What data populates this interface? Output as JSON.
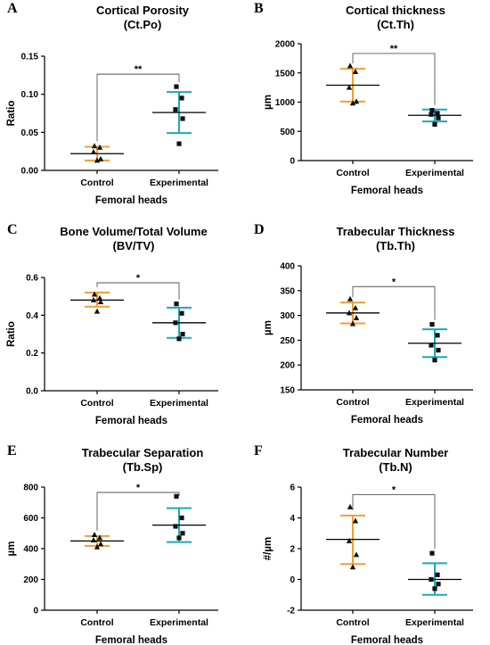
{
  "colors": {
    "control": "#f0a030",
    "experimental": "#1aaab8",
    "points": "#111111"
  },
  "chart_data": [
    {
      "panel": "A",
      "type": "scatter",
      "title": "Cortical Porosity",
      "subtitle": "(Ct.Po)",
      "xlabel": "Femoral heads",
      "ylabel": "Ratio",
      "ylim": [
        0,
        0.15
      ],
      "yticks": [
        "0.00",
        "0.05",
        "0.10",
        "0.15"
      ],
      "categories": [
        "Control",
        "Experimental"
      ],
      "series": [
        {
          "mean": 0.022,
          "sd_low": 0.013,
          "sd_high": 0.031,
          "points": [
            0.032,
            0.03,
            0.024,
            0.015,
            0.013
          ],
          "marker": "triangle"
        },
        {
          "mean": 0.076,
          "sd_low": 0.049,
          "sd_high": 0.103,
          "points": [
            0.11,
            0.095,
            0.08,
            0.068,
            0.035
          ],
          "marker": "square"
        }
      ],
      "significance": "**"
    },
    {
      "panel": "B",
      "type": "scatter",
      "title": "Cortical thickness",
      "subtitle": "(Ct.Th)",
      "xlabel": "Femoral heads",
      "ylabel": "µm",
      "ylim": [
        0,
        2000
      ],
      "yticks": [
        "0",
        "500",
        "1000",
        "1500",
        "2000"
      ],
      "categories": [
        "Control",
        "Experimental"
      ],
      "series": [
        {
          "mean": 1290,
          "sd_low": 1010,
          "sd_high": 1570,
          "points": [
            1620,
            1520,
            1250,
            1010,
            980
          ],
          "marker": "triangle"
        },
        {
          "mean": 775,
          "sd_low": 670,
          "sd_high": 875,
          "points": [
            860,
            810,
            790,
            730,
            620
          ],
          "marker": "square"
        }
      ],
      "significance": "**"
    },
    {
      "panel": "C",
      "type": "scatter",
      "title": "Bone Volume/Total Volume",
      "subtitle": "(BV/TV)",
      "xlabel": "Femoral heads",
      "ylabel": "Ratio",
      "ylim": [
        0,
        0.6
      ],
      "yticks": [
        "0.0",
        "0.2",
        "0.4",
        "0.6"
      ],
      "categories": [
        "Control",
        "Experimental"
      ],
      "series": [
        {
          "mean": 0.48,
          "sd_low": 0.445,
          "sd_high": 0.52,
          "points": [
            0.51,
            0.49,
            0.48,
            0.47,
            0.42
          ],
          "marker": "triangle"
        },
        {
          "mean": 0.36,
          "sd_low": 0.28,
          "sd_high": 0.44,
          "points": [
            0.46,
            0.41,
            0.36,
            0.3,
            0.275
          ],
          "marker": "square"
        }
      ],
      "significance": "*"
    },
    {
      "panel": "D",
      "type": "scatter",
      "title": "Trabecular Thickness",
      "subtitle": "(Tb.Th)",
      "xlabel": "Femoral heads",
      "ylabel": "µm",
      "ylim": [
        150,
        400
      ],
      "yticks": [
        "150",
        "200",
        "250",
        "300",
        "350",
        "400"
      ],
      "categories": [
        "Control",
        "Experimental"
      ],
      "series": [
        {
          "mean": 305,
          "sd_low": 284,
          "sd_high": 326,
          "points": [
            333,
            315,
            305,
            295,
            283
          ],
          "marker": "triangle"
        },
        {
          "mean": 244,
          "sd_low": 216,
          "sd_high": 272,
          "points": [
            282,
            260,
            240,
            230,
            210
          ],
          "marker": "square"
        }
      ],
      "significance": "*"
    },
    {
      "panel": "E",
      "type": "scatter",
      "title": "Trabecular Separation",
      "subtitle": "(Tb.Sp)",
      "xlabel": "Femoral heads",
      "ylabel": "µm",
      "ylim": [
        0,
        800
      ],
      "yticks": [
        "0",
        "200",
        "400",
        "600",
        "800"
      ],
      "categories": [
        "Control",
        "Experimental"
      ],
      "series": [
        {
          "mean": 450,
          "sd_low": 418,
          "sd_high": 482,
          "points": [
            490,
            470,
            455,
            430,
            410
          ],
          "marker": "triangle"
        },
        {
          "mean": 553,
          "sd_low": 443,
          "sd_high": 663,
          "points": [
            740,
            600,
            545,
            500,
            470
          ],
          "marker": "square"
        }
      ],
      "significance": "*"
    },
    {
      "panel": "F",
      "type": "scatter",
      "title": "Trabecular Number",
      "subtitle": "(Tb.N)",
      "xlabel": "Femoral heads",
      "ylabel": "#/µm",
      "ylim": [
        -2,
        6
      ],
      "yticks": [
        "-2",
        "0",
        "2",
        "4",
        "6"
      ],
      "categories": [
        "Control",
        "Experimental"
      ],
      "series": [
        {
          "mean": 2.6,
          "sd_low": 1.0,
          "sd_high": 4.15,
          "points": [
            4.7,
            3.8,
            2.5,
            1.6,
            0.8
          ],
          "marker": "triangle"
        },
        {
          "mean": 0.0,
          "sd_low": -1.0,
          "sd_high": 1.05,
          "points": [
            1.7,
            0.3,
            0.0,
            -0.3,
            -0.6
          ],
          "marker": "square"
        }
      ],
      "significance": "*"
    }
  ]
}
